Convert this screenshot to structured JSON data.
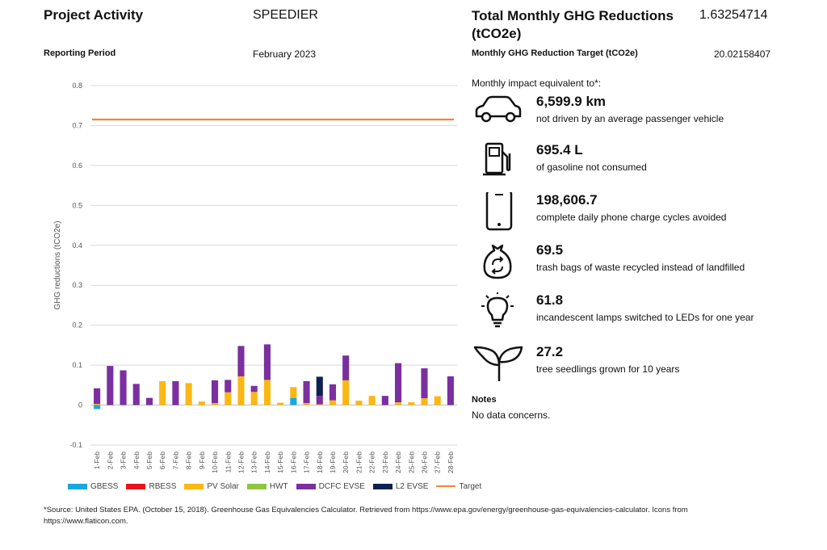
{
  "header": {
    "title": "Project Activity",
    "project_name": "SPEEDIER",
    "reporting_period_label": "Reporting Period",
    "reporting_period_value": "February 2023"
  },
  "summary": {
    "total_label": "Total Monthly GHG Reductions (tCO2e)",
    "total_value": "1.63254714",
    "target_label": "Monthly GHG Reduction Target (tCO2e)",
    "target_value": "20.02158407"
  },
  "impacts": {
    "heading": "Monthly impact equivalent to*:",
    "items": [
      {
        "icon": "car-icon",
        "value": "6,599.9 km",
        "desc": "not driven by an average passenger vehicle"
      },
      {
        "icon": "fuel-pump-icon",
        "value": "695.4 L",
        "desc": "of gasoline not consumed"
      },
      {
        "icon": "phone-icon",
        "value": "198,606.7",
        "desc": "complete daily phone charge cycles avoided"
      },
      {
        "icon": "recycle-bag-icon",
        "value": "69.5",
        "desc": "trash bags of waste recycled instead of landfilled"
      },
      {
        "icon": "lightbulb-icon",
        "value": "61.8",
        "desc": "incandescent lamps switched to LEDs for one year"
      },
      {
        "icon": "seedling-icon",
        "value": "27.2",
        "desc": "tree seedlings grown for 10 years"
      }
    ]
  },
  "notes": {
    "heading": "Notes",
    "text": "No data concerns."
  },
  "footnote": "*Source: United States EPA. (October 15, 2018). Greenhouse Gas Equivalencies Calculator. Retrieved from https://www.epa.gov/energy/greenhouse-gas-equivalencies-calculator. Icons from https://www.flaticon.com.",
  "chart_data": {
    "type": "bar",
    "stacked": true,
    "ylabel": "GHG reductions (tCO2e)",
    "ylim": [
      -0.1,
      0.8
    ],
    "yticks": [
      -0.1,
      0,
      0.1,
      0.2,
      0.3,
      0.4,
      0.5,
      0.6,
      0.7,
      0.8
    ],
    "grid": true,
    "legend_position": "bottom",
    "categories": [
      "1-Feb",
      "2-Feb",
      "3-Feb",
      "4-Feb",
      "5-Feb",
      "6-Feb",
      "7-Feb",
      "8-Feb",
      "9-Feb",
      "10-Feb",
      "11-Feb",
      "12-Feb",
      "13-Feb",
      "14-Feb",
      "15-Feb",
      "16-Feb",
      "17-Feb",
      "18-Feb",
      "19-Feb",
      "20-Feb",
      "21-Feb",
      "22-Feb",
      "23-Feb",
      "24-Feb",
      "25-Feb",
      "26-Feb",
      "27-Feb",
      "28-Feb"
    ],
    "series": [
      {
        "name": "GBESS",
        "color": "#1aa7e0",
        "values": [
          -0.01,
          0,
          0,
          0,
          0,
          0,
          0,
          0,
          0,
          0,
          0,
          0,
          0,
          0,
          0,
          0.018,
          0,
          0,
          0,
          0,
          0,
          0,
          0,
          0,
          0,
          0,
          0,
          0
        ]
      },
      {
        "name": "RBESS",
        "color": "#e8141b",
        "values": [
          0,
          0,
          0,
          0,
          0,
          0,
          0,
          0,
          0,
          0,
          0,
          0,
          0,
          0,
          0,
          0,
          0,
          0,
          0,
          0,
          0,
          0,
          0,
          0,
          0,
          0,
          0,
          0
        ]
      },
      {
        "name": "PV Solar",
        "color": "#fbb714",
        "values": [
          0.003,
          0,
          0,
          0,
          0,
          0.06,
          0,
          0.055,
          0.009,
          0.005,
          0.032,
          0.072,
          0.033,
          0.063,
          0.006,
          0.027,
          0.005,
          0.002,
          0.012,
          0.062,
          0.011,
          0.023,
          0,
          0.007,
          0.007,
          0.017,
          0.022,
          0
        ]
      },
      {
        "name": "HWT",
        "color": "#8dc63f",
        "values": [
          0,
          0,
          0,
          0,
          0,
          0,
          0,
          0,
          0,
          0,
          0,
          0,
          0,
          0,
          0,
          0,
          0,
          0,
          0,
          0,
          0,
          0,
          0,
          0,
          0,
          0,
          0,
          0
        ]
      },
      {
        "name": "DCFC EVSE",
        "color": "#7b2fa0",
        "values": [
          0.039,
          0.098,
          0.087,
          0.053,
          0.018,
          0,
          0.06,
          0,
          0,
          0.057,
          0.031,
          0.076,
          0.015,
          0.089,
          0,
          0,
          0.055,
          0.021,
          0.04,
          0.062,
          0,
          0,
          0.023,
          0.098,
          0,
          0.075,
          0,
          0.072
        ]
      },
      {
        "name": "L2 EVSE",
        "color": "#0f2150",
        "values": [
          0,
          0,
          0,
          0,
          0,
          0,
          0,
          0,
          0,
          0,
          0,
          0,
          0,
          0,
          0,
          0,
          0,
          0.048,
          0,
          0,
          0,
          0,
          0,
          0,
          0,
          0,
          0,
          0
        ]
      },
      {
        "name": "Target",
        "type": "line",
        "color": "#f0843c",
        "value": 0.715
      }
    ]
  }
}
